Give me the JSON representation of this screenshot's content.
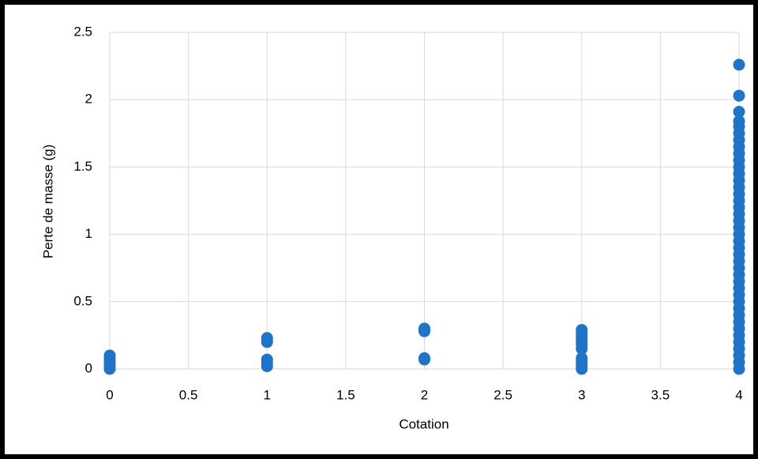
{
  "chart_data": {
    "type": "scatter",
    "x_label": "Cotation",
    "y_label": "Perte de masse (g)",
    "x": [
      0,
      0,
      0,
      0,
      0,
      0,
      1,
      1,
      1,
      1,
      1,
      1,
      2,
      2,
      2,
      2,
      3,
      3,
      3,
      3,
      3,
      3,
      3,
      3,
      3,
      3,
      3,
      3,
      3,
      4,
      4,
      4,
      4,
      4,
      4,
      4,
      4,
      4,
      4,
      4,
      4,
      4,
      4,
      4,
      4,
      4,
      4,
      4,
      4,
      4,
      4,
      4,
      4,
      4,
      4,
      4,
      4,
      4,
      4,
      4,
      4,
      4,
      4,
      4,
      4,
      4,
      4,
      4,
      4,
      4
    ],
    "values": [
      0,
      0.02,
      0.04,
      0.06,
      0.08,
      0.1,
      0.02,
      0.05,
      0.07,
      0.2,
      0.22,
      0.23,
      0.07,
      0.08,
      0.28,
      0.3,
      0,
      0.02,
      0.04,
      0.06,
      0.08,
      0.15,
      0.18,
      0.2,
      0.22,
      0.24,
      0.26,
      0.28,
      0.29,
      0,
      0.05,
      0.1,
      0.15,
      0.2,
      0.25,
      0.3,
      0.35,
      0.4,
      0.45,
      0.5,
      0.55,
      0.6,
      0.65,
      0.7,
      0.75,
      0.8,
      0.85,
      0.9,
      0.95,
      1,
      1.05,
      1.1,
      1.15,
      1.2,
      1.25,
      1.3,
      1.35,
      1.4,
      1.45,
      1.5,
      1.55,
      1.6,
      1.65,
      1.7,
      1.75,
      1.8,
      1.84,
      1.91,
      2.03,
      2.26
    ],
    "color": "#1f74c8",
    "xlim": [
      0,
      4
    ],
    "xticks": [
      0,
      0.5,
      1,
      1.5,
      2,
      2.5,
      3,
      3.5,
      4
    ],
    "ylim": [
      0,
      2.5
    ],
    "yticks": [
      0,
      0.5,
      1,
      1.5,
      2,
      2.5
    ],
    "grid": true
  }
}
